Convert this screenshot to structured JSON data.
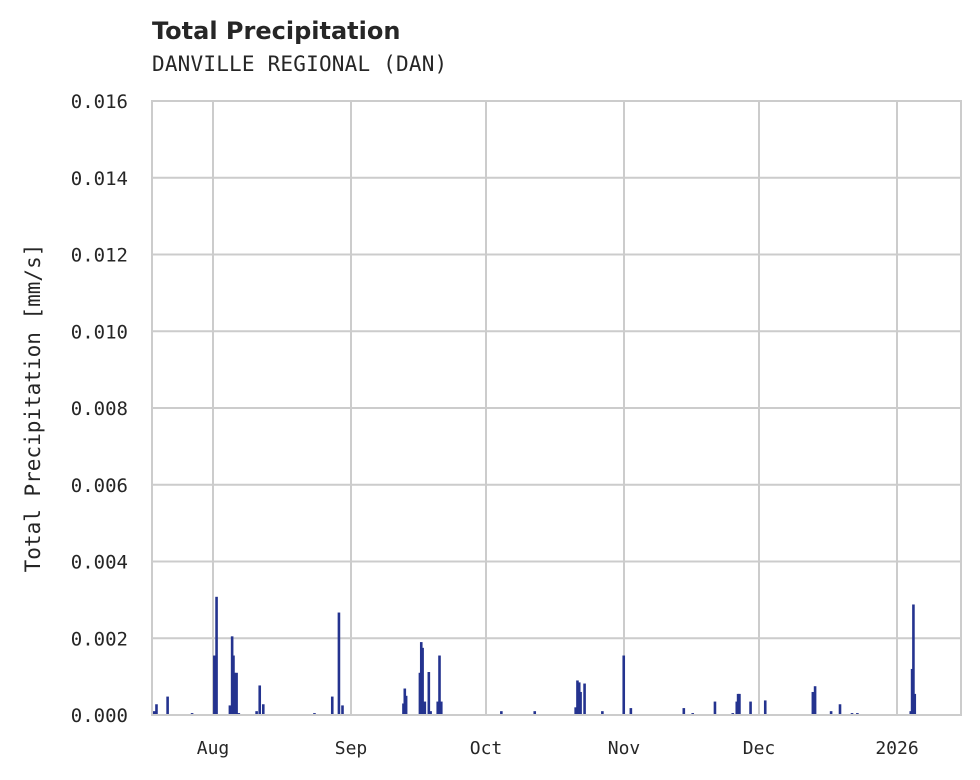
{
  "header": {
    "title": "Total Precipitation",
    "subtitle": "DANVILLE REGIONAL (DAN)"
  },
  "chart_data": {
    "type": "bar",
    "title": "Total Precipitation",
    "subtitle": "DANVILLE REGIONAL (DAN)",
    "xlabel": "",
    "ylabel": "Total Precipitation [mm/s]",
    "ylim": [
      0,
      0.016
    ],
    "yticks": [
      "0.000",
      "0.002",
      "0.004",
      "0.006",
      "0.008",
      "0.010",
      "0.012",
      "0.014",
      "0.016"
    ],
    "xticks": [
      "Aug",
      "Sep",
      "Oct",
      "Nov",
      "Dec",
      "2026"
    ],
    "grid": true,
    "color": "#24338f",
    "x_day_positions_note": "x expressed as day index starting Jul 19 (Aug 1 = day 13)",
    "series": [
      {
        "name": "Total Precipitation",
        "points": [
          {
            "day": 0.5,
            "value": 0.0001
          },
          {
            "day": 1.0,
            "value": 0.00028
          },
          {
            "day": 3.5,
            "value": 0.00048
          },
          {
            "day": 9.0,
            "value": 5e-05
          },
          {
            "day": 14.0,
            "value": 0.00155
          },
          {
            "day": 14.5,
            "value": 0.00308
          },
          {
            "day": 17.5,
            "value": 0.00025
          },
          {
            "day": 18.0,
            "value": 0.00205
          },
          {
            "day": 18.3,
            "value": 0.00155
          },
          {
            "day": 18.6,
            "value": 0.0011
          },
          {
            "day": 19.0,
            "value": 0.0011
          },
          {
            "day": 19.5,
            "value": 5e-05
          },
          {
            "day": 23.5,
            "value": 0.0001
          },
          {
            "day": 24.2,
            "value": 0.00077
          },
          {
            "day": 25.0,
            "value": 0.00028
          },
          {
            "day": 36.5,
            "value": 5e-05
          },
          {
            "day": 40.5,
            "value": 0.00048
          },
          {
            "day": 42.0,
            "value": 0.00267
          },
          {
            "day": 42.8,
            "value": 0.00025
          },
          {
            "day": 56.5,
            "value": 0.0003
          },
          {
            "day": 56.8,
            "value": 0.00069
          },
          {
            "day": 57.1,
            "value": 0.0005
          },
          {
            "day": 60.2,
            "value": 0.0011
          },
          {
            "day": 60.5,
            "value": 0.0019
          },
          {
            "day": 60.8,
            "value": 0.00175
          },
          {
            "day": 61.3,
            "value": 0.00035
          },
          {
            "day": 62.2,
            "value": 0.00112
          },
          {
            "day": 62.6,
            "value": 0.0001
          },
          {
            "day": 64.2,
            "value": 0.00035
          },
          {
            "day": 64.6,
            "value": 0.00155
          },
          {
            "day": 65.0,
            "value": 0.00035
          },
          {
            "day": 78.5,
            "value": 0.0001
          },
          {
            "day": 86.0,
            "value": 0.0001
          },
          {
            "day": 95.2,
            "value": 0.0002
          },
          {
            "day": 95.6,
            "value": 0.0009
          },
          {
            "day": 96.0,
            "value": 0.00085
          },
          {
            "day": 96.3,
            "value": 0.0006
          },
          {
            "day": 97.2,
            "value": 0.00082
          },
          {
            "day": 101.2,
            "value": 0.0001
          },
          {
            "day": 106.0,
            "value": 0.00155
          },
          {
            "day": 107.6,
            "value": 0.00018
          },
          {
            "day": 119.5,
            "value": 0.00018
          },
          {
            "day": 121.5,
            "value": 5e-05
          },
          {
            "day": 126.5,
            "value": 0.00035
          },
          {
            "day": 130.5,
            "value": 5e-05
          },
          {
            "day": 131.4,
            "value": 0.00035
          },
          {
            "day": 131.7,
            "value": 0.00055
          },
          {
            "day": 132.0,
            "value": 0.00055
          },
          {
            "day": 134.5,
            "value": 0.00035
          },
          {
            "day": 137.8,
            "value": 0.00038
          },
          {
            "day": 148.5,
            "value": 0.0006
          },
          {
            "day": 149.0,
            "value": 0.00075
          },
          {
            "day": 152.6,
            "value": 0.0001
          },
          {
            "day": 154.6,
            "value": 0.00028
          },
          {
            "day": 157.3,
            "value": 5e-05
          },
          {
            "day": 158.5,
            "value": 5e-05
          },
          {
            "day": 170.5,
            "value": 0.0001
          },
          {
            "day": 170.8,
            "value": 0.0012
          },
          {
            "day": 171.1,
            "value": 0.00288
          },
          {
            "day": 171.4,
            "value": 0.00055
          }
        ]
      }
    ]
  }
}
